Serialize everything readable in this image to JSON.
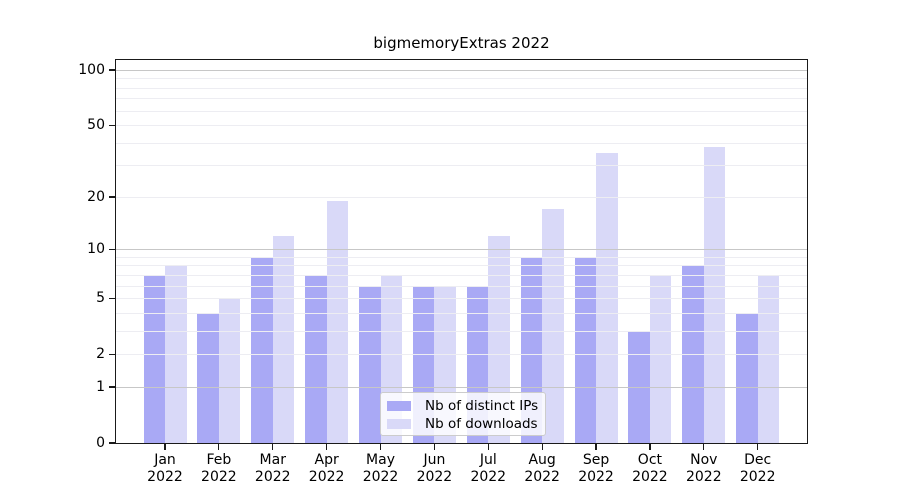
{
  "chart_data": {
    "type": "bar",
    "title": "bigmemoryExtras 2022",
    "categories": [
      "Jan 2022",
      "Feb 2022",
      "Mar 2022",
      "Apr 2022",
      "May 2022",
      "Jun 2022",
      "Jul 2022",
      "Aug 2022",
      "Sep 2022",
      "Oct 2022",
      "Nov 2022",
      "Dec 2022"
    ],
    "series": [
      {
        "name": "Nb of distinct IPs",
        "color": "#a9a9f5",
        "values": [
          7,
          4,
          9,
          7,
          6,
          6,
          6,
          9,
          9,
          3,
          8,
          4
        ]
      },
      {
        "name": "Nb of downloads",
        "color": "#d9d9f8",
        "values": [
          8,
          5,
          12,
          19,
          7,
          6,
          12,
          17,
          35,
          7,
          38,
          7
        ]
      }
    ],
    "xlabel": "",
    "ylabel": "",
    "yscale": "log1p",
    "yticks": [
      0,
      1,
      2,
      5,
      10,
      20,
      50,
      100
    ],
    "ylim": [
      0,
      115
    ],
    "grid": "horizontal",
    "grid_major_values": [
      1,
      10,
      100
    ],
    "grid_minor_values": [
      2,
      3,
      4,
      5,
      6,
      7,
      8,
      9,
      20,
      30,
      40,
      50,
      60,
      70,
      80,
      90
    ],
    "legend_position": "inside lower center"
  },
  "colors": {
    "background": "#ffffff",
    "bar_distinct_ips": "#a9a9f5",
    "bar_downloads": "#d9d9f8",
    "grid_major": "#c7c7c7",
    "grid_minor": "#ededf2",
    "spine": "#1a1a1a",
    "legend_border": "#cccccc"
  }
}
